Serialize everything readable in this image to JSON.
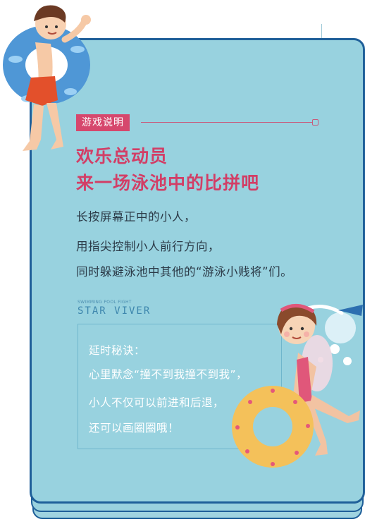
{
  "section_tag": "游戏说明",
  "headline": {
    "line1": "欢乐总动员",
    "line2": "来一场泳池中的比拼吧"
  },
  "instructions": [
    "长按屏幕正中的小人，",
    "用指尖控制小人前行方向，",
    "同时躲避泳池中其他的“游泳小贱将”们。"
  ],
  "brand": {
    "small": "SWIMMING POOL FIGHT",
    "big": "STAR VIVER"
  },
  "tips": {
    "title": "延时秘诀：",
    "lines": [
      "心里默念“撞不到我撞不到我”，",
      "小人不仅可以前进和后退，",
      "还可以画圈圈哦！"
    ]
  },
  "colors": {
    "card_bg": "#98d2df",
    "card_border": "#1f5f99",
    "accent_pink": "#d23e66",
    "tag_bg": "#d6476d",
    "body_text": "#2b3a47",
    "tips_text": "#ffffff"
  },
  "icons": [
    "boy-with-swim-ring-illustration",
    "girl-with-swim-ring-illustration"
  ]
}
